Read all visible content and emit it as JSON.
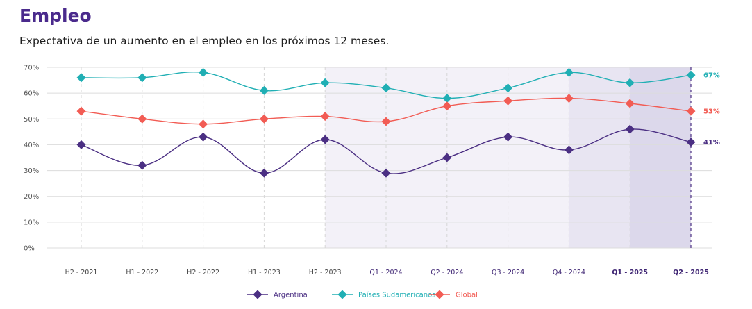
{
  "header": {
    "title": "Empleo",
    "subtitle": "Expectativa de un aumento en el empleo en los próximos 12 meses."
  },
  "colors": {
    "title": "#4a2a8c",
    "argentina": "#4b2f83",
    "sudamerica": "#20afb4",
    "global": "#f25c54",
    "shade_light": "#f3f1f8",
    "shade_mid": "#e8e5f2",
    "shade_dark": "#dcd8eb"
  },
  "chart_data": {
    "type": "line",
    "categories": [
      "H2 - 2021",
      "H1 - 2022",
      "H2 - 2022",
      "H1 - 2023",
      "H2 - 2023",
      "Q1 - 2024",
      "Q2 - 2024",
      "Q3 - 2024",
      "Q4 - 2024",
      "Q1 - 2025",
      "Q2 - 2025"
    ],
    "bold_categories": [
      "Q1 - 2025",
      "Q2 - 2025"
    ],
    "y_ticks": [
      "0%",
      "10%",
      "20%",
      "30%",
      "40%",
      "50%",
      "60%",
      "70%"
    ],
    "ylim": [
      0,
      70
    ],
    "grid": true,
    "legend_position": "bottom-center",
    "series": [
      {
        "name": "Argentina",
        "color_key": "argentina",
        "values": [
          40,
          32,
          43,
          29,
          42,
          29,
          35,
          43,
          38,
          46,
          41
        ],
        "end_label": "41%"
      },
      {
        "name": "Países Sudamericanos",
        "color_key": "sudamerica",
        "values": [
          66,
          66,
          68,
          61,
          64,
          62,
          58,
          62,
          68,
          64,
          67
        ],
        "end_label": "67%"
      },
      {
        "name": "Global",
        "color_key": "global",
        "values": [
          53,
          50,
          48,
          50,
          51,
          49,
          55,
          57,
          58,
          56,
          53
        ],
        "end_label": "53%"
      }
    ]
  }
}
